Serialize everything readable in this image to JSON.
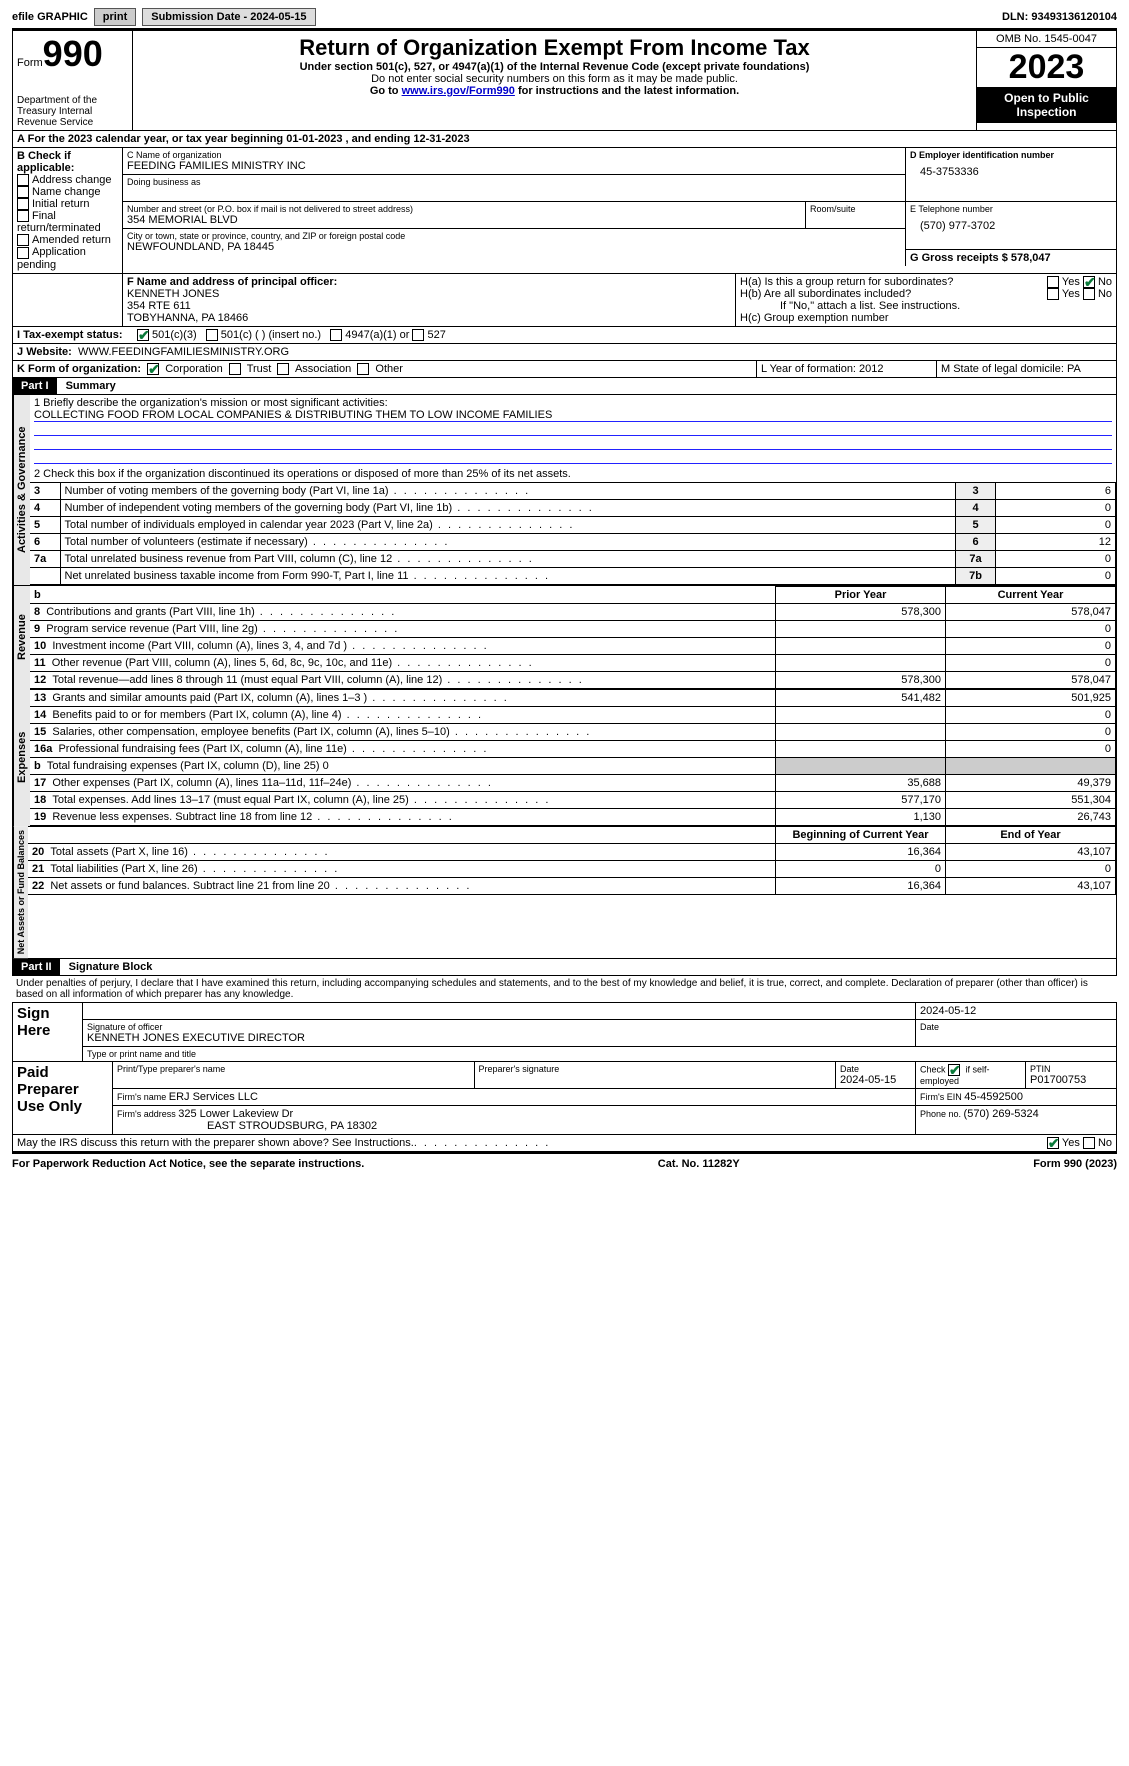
{
  "topbar": {
    "efile": "efile GRAPHIC",
    "print": "print",
    "submission_label": "Submission Date - 2024-05-15",
    "dln_label": "DLN: 93493136120104"
  },
  "header": {
    "form_word": "Form",
    "form_num": "990",
    "dept": "Department of the Treasury Internal Revenue Service",
    "title": "Return of Organization Exempt From Income Tax",
    "subtitle": "Under section 501(c), 527, or 4947(a)(1) of the Internal Revenue Code (except private foundations)",
    "ssn_note": "Do not enter social security numbers on this form as it may be made public.",
    "goto": "Go to ",
    "goto_link": "www.irs.gov/Form990",
    "goto_rest": " for instructions and the latest information.",
    "omb": "OMB No. 1545-0047",
    "year": "2023",
    "inspection": "Open to Public Inspection"
  },
  "sectionA": {
    "line": "For the 2023 calendar year, or tax year beginning 01-01-2023   , and ending 12-31-2023",
    "b_label": "B Check if applicable:",
    "b_items": [
      "Address change",
      "Name change",
      "Initial return",
      "Final return/terminated",
      "Amended return",
      "Application pending"
    ],
    "c_name_lbl": "C Name of organization",
    "c_name": "FEEDING FAMILIES MINISTRY INC",
    "dba_lbl": "Doing business as",
    "street_lbl": "Number and street (or P.O. box if mail is not delivered to street address)",
    "street": "354 MEMORIAL BLVD",
    "room_lbl": "Room/suite",
    "city_lbl": "City or town, state or province, country, and ZIP or foreign postal code",
    "city": "NEWFOUNDLAND, PA   18445",
    "d_lbl": "D Employer identification number",
    "d_val": "45-3753336",
    "e_lbl": "E Telephone number",
    "e_val": "(570) 977-3702",
    "g_lbl": "G Gross receipts $ 578,047",
    "f_lbl": "F  Name and address of principal officer:",
    "f_name": "KENNETH JONES",
    "f_street": "354 RTE 611",
    "f_city": "TOBYHANNA, PA  18466",
    "h_a": "H(a)  Is this a group return for subordinates?",
    "h_b": "H(b)  Are all subordinates included?",
    "h_b_note": "If \"No,\" attach a list. See instructions.",
    "h_c": "H(c)  Group exemption number ",
    "yes": "Yes",
    "no": "No",
    "i_lbl": "Tax-exempt status:",
    "i_501c3": "501(c)(3)",
    "i_501c": "501(c) (  ) (insert no.)",
    "i_4947": "4947(a)(1) or",
    "i_527": "527",
    "j_lbl": "Website: ",
    "j_val": "WWW.FEEDINGFAMILIESMINISTRY.ORG",
    "k_lbl": "K Form of organization:",
    "k_corp": "Corporation",
    "k_trust": "Trust",
    "k_assoc": "Association",
    "k_other": "Other",
    "l_lbl": "L Year of formation: 2012",
    "m_lbl": "M State of legal domicile: PA"
  },
  "part1": {
    "label": "Part I",
    "title": "Summary",
    "line1_lbl": "1  Briefly describe the organization's mission or most significant activities:",
    "line1_val": "COLLECTING FOOD FROM LOCAL COMPANIES & DISTRIBUTING THEM TO LOW INCOME FAMILIES",
    "line2": "2  Check this box       if the organization discontinued its operations or disposed of more than 25% of its net assets.",
    "gov_rows": [
      {
        "n": "3",
        "t": "Number of voting members of the governing body (Part VI, line 1a)",
        "c": "3",
        "v": "6"
      },
      {
        "n": "4",
        "t": "Number of independent voting members of the governing body (Part VI, line 1b)",
        "c": "4",
        "v": "0"
      },
      {
        "n": "5",
        "t": "Total number of individuals employed in calendar year 2023 (Part V, line 2a)",
        "c": "5",
        "v": "0"
      },
      {
        "n": "6",
        "t": "Total number of volunteers (estimate if necessary)",
        "c": "6",
        "v": "12"
      },
      {
        "n": "7a",
        "t": "Total unrelated business revenue from Part VIII, column (C), line 12",
        "c": "7a",
        "v": "0"
      },
      {
        "n": "",
        "t": "Net unrelated business taxable income from Form 990-T, Part I, line 11",
        "c": "7b",
        "v": "0"
      }
    ],
    "col_prior": "Prior Year",
    "col_current": "Current Year",
    "rev_rows": [
      {
        "n": "8",
        "t": "Contributions and grants (Part VIII, line 1h)",
        "p": "578,300",
        "c": "578,047"
      },
      {
        "n": "9",
        "t": "Program service revenue (Part VIII, line 2g)",
        "p": "",
        "c": "0"
      },
      {
        "n": "10",
        "t": "Investment income (Part VIII, column (A), lines 3, 4, and 7d )",
        "p": "",
        "c": "0"
      },
      {
        "n": "11",
        "t": "Other revenue (Part VIII, column (A), lines 5, 6d, 8c, 9c, 10c, and 11e)",
        "p": "",
        "c": "0"
      },
      {
        "n": "12",
        "t": "Total revenue—add lines 8 through 11 (must equal Part VIII, column (A), line 12)",
        "p": "578,300",
        "c": "578,047"
      }
    ],
    "exp_rows": [
      {
        "n": "13",
        "t": "Grants and similar amounts paid (Part IX, column (A), lines 1–3 )",
        "p": "541,482",
        "c": "501,925"
      },
      {
        "n": "14",
        "t": "Benefits paid to or for members (Part IX, column (A), line 4)",
        "p": "",
        "c": "0"
      },
      {
        "n": "15",
        "t": "Salaries, other compensation, employee benefits (Part IX, column (A), lines 5–10)",
        "p": "",
        "c": "0"
      },
      {
        "n": "16a",
        "t": "Professional fundraising fees (Part IX, column (A), line 11e)",
        "p": "",
        "c": "0"
      },
      {
        "n": "b",
        "t": "Total fundraising expenses (Part IX, column (D), line 25) 0",
        "p": "SHADE",
        "c": "SHADE"
      },
      {
        "n": "17",
        "t": "Other expenses (Part IX, column (A), lines 11a–11d, 11f–24e)",
        "p": "35,688",
        "c": "49,379"
      },
      {
        "n": "18",
        "t": "Total expenses. Add lines 13–17 (must equal Part IX, column (A), line 25)",
        "p": "577,170",
        "c": "551,304"
      },
      {
        "n": "19",
        "t": "Revenue less expenses. Subtract line 18 from line 12",
        "p": "1,130",
        "c": "26,743"
      }
    ],
    "col_begin": "Beginning of Current Year",
    "col_end": "End of Year",
    "net_rows": [
      {
        "n": "20",
        "t": "Total assets (Part X, line 16)",
        "p": "16,364",
        "c": "43,107"
      },
      {
        "n": "21",
        "t": "Total liabilities (Part X, line 26)",
        "p": "0",
        "c": "0"
      },
      {
        "n": "22",
        "t": "Net assets or fund balances. Subtract line 21 from line 20",
        "p": "16,364",
        "c": "43,107"
      }
    ],
    "vlabels": {
      "gov": "Activities & Governance",
      "rev": "Revenue",
      "exp": "Expenses",
      "net": "Net Assets or Fund Balances"
    }
  },
  "part2": {
    "label": "Part II",
    "title": "Signature Block",
    "perjury": "Under penalties of perjury, I declare that I have examined this return, including accompanying schedules and statements, and to the best of my knowledge and belief, it is true, correct, and complete. Declaration of preparer (other than officer) is based on all information of which preparer has any knowledge.",
    "sign_here": "Sign Here",
    "sig_date": "2024-05-12",
    "sig_officer_lbl": "Signature of officer",
    "sig_officer": "KENNETH JONES EXECUTIVE DIRECTOR",
    "sig_type_lbl": "Type or print name and title",
    "date_lbl": "Date",
    "paid": "Paid Preparer Use Only",
    "prep_name_lbl": "Print/Type preparer's name",
    "prep_sig_lbl": "Preparer's signature",
    "prep_date_lbl": "Date",
    "prep_date": "2024-05-15",
    "prep_check_lbl": "Check         if self-employed",
    "ptin_lbl": "PTIN",
    "ptin": "P01700753",
    "firm_name_lbl": "Firm's name     ",
    "firm_name": "ERJ Services LLC",
    "firm_ein_lbl": "Firm's EIN  ",
    "firm_ein": "45-4592500",
    "firm_addr_lbl": "Firm's address ",
    "firm_addr": "325 Lower Lakeview Dr",
    "firm_city": "EAST STROUDSBURG, PA  18302",
    "phone_lbl": "Phone no. ",
    "phone": "(570) 269-5324",
    "discuss": "May the IRS discuss this return with the preparer shown above? See Instructions."
  },
  "footer": {
    "left": "For Paperwork Reduction Act Notice, see the separate instructions.",
    "mid": "Cat. No. 11282Y",
    "right_a": "Form ",
    "right_b": "990",
    "right_c": " (2023)"
  }
}
